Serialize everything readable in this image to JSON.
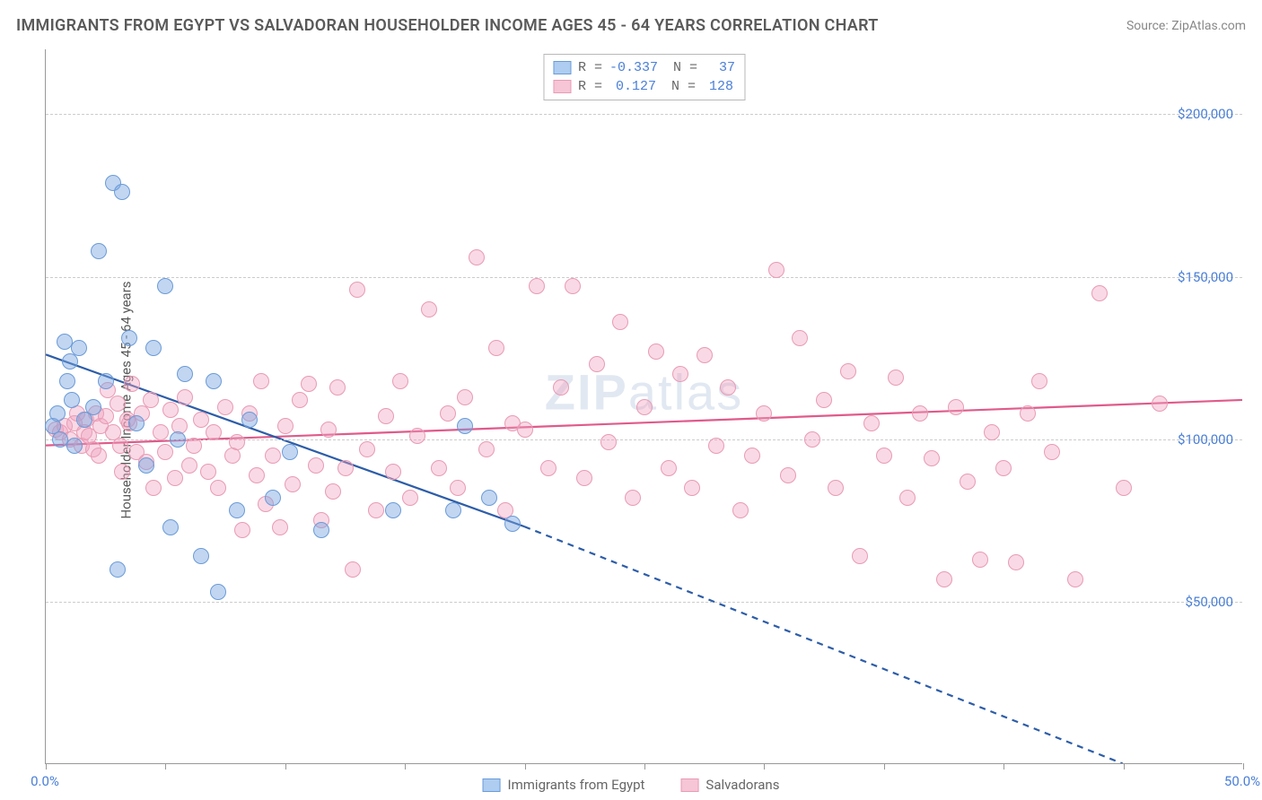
{
  "title": "IMMIGRANTS FROM EGYPT VS SALVADORAN HOUSEHOLDER INCOME AGES 45 - 64 YEARS CORRELATION CHART",
  "source": "Source: ZipAtlas.com",
  "watermark_a": "ZIP",
  "watermark_b": "atlas",
  "y_axis_label": "Householder Income Ages 45 - 64 years",
  "chart": {
    "type": "scatter",
    "background_color": "#ffffff",
    "grid_color": "#cccccc",
    "axis_color": "#999999",
    "xlim": [
      0,
      50
    ],
    "ylim": [
      0,
      220000
    ],
    "y_ticks": [
      50000,
      100000,
      150000,
      200000
    ],
    "y_tick_labels": [
      "$50,000",
      "$100,000",
      "$150,000",
      "$200,000"
    ],
    "x_ticks": [
      0,
      5,
      10,
      15,
      20,
      25,
      30,
      35,
      40,
      45,
      50
    ],
    "x_tick_labels": {
      "0": "0.0%",
      "50": "50.0%"
    },
    "marker_radius": 9,
    "marker_stroke_width": 1.2,
    "trend_line_width": 2.2
  },
  "series_a": {
    "name": "Immigrants from Egypt",
    "fill_color": "rgba(120,165,225,0.45)",
    "stroke_color": "#6a9bd8",
    "line_color": "#2d5da8",
    "swatch_fill": "#aecdf0",
    "swatch_stroke": "#6a9bd8",
    "R": "-0.337",
    "N": "37",
    "trend": {
      "x1": 0,
      "y1": 126000,
      "x2": 20,
      "y2": 73000,
      "dash_x2": 45,
      "dash_y2": 0
    },
    "points": [
      [
        0.3,
        104000
      ],
      [
        0.5,
        108000
      ],
      [
        0.8,
        130000
      ],
      [
        0.6,
        100000
      ],
      [
        0.9,
        118000
      ],
      [
        1.0,
        124000
      ],
      [
        1.1,
        112000
      ],
      [
        1.2,
        98000
      ],
      [
        1.4,
        128000
      ],
      [
        1.6,
        106000
      ],
      [
        2.0,
        110000
      ],
      [
        2.2,
        158000
      ],
      [
        2.5,
        118000
      ],
      [
        2.8,
        179000
      ],
      [
        3.0,
        60000
      ],
      [
        3.2,
        176000
      ],
      [
        3.5,
        131000
      ],
      [
        3.8,
        105000
      ],
      [
        4.2,
        92000
      ],
      [
        4.5,
        128000
      ],
      [
        5.0,
        147000
      ],
      [
        5.2,
        73000
      ],
      [
        5.5,
        100000
      ],
      [
        5.8,
        120000
      ],
      [
        6.5,
        64000
      ],
      [
        7.0,
        118000
      ],
      [
        7.2,
        53000
      ],
      [
        8.0,
        78000
      ],
      [
        8.5,
        106000
      ],
      [
        9.5,
        82000
      ],
      [
        10.2,
        96000
      ],
      [
        11.5,
        72000
      ],
      [
        14.5,
        78000
      ],
      [
        17.0,
        78000
      ],
      [
        17.5,
        104000
      ],
      [
        18.5,
        82000
      ],
      [
        19.5,
        74000
      ]
    ]
  },
  "series_b": {
    "name": "Salvadorans",
    "fill_color": "rgba(240,160,190,0.40)",
    "stroke_color": "#e89bb5",
    "line_color": "#e05a8a",
    "swatch_fill": "#f6c5d6",
    "swatch_stroke": "#e89bb5",
    "R": "0.127",
    "N": "128",
    "trend": {
      "x1": 0,
      "y1": 98000,
      "x2": 50,
      "y2": 112000
    },
    "points": [
      [
        0.4,
        103000
      ],
      [
        0.6,
        102000
      ],
      [
        0.8,
        104000
      ],
      [
        1.0,
        100000
      ],
      [
        1.2,
        105000
      ],
      [
        1.3,
        108000
      ],
      [
        1.5,
        98000
      ],
      [
        1.6,
        102000
      ],
      [
        1.7,
        106000
      ],
      [
        1.8,
        101000
      ],
      [
        2.0,
        97000
      ],
      [
        2.1,
        108000
      ],
      [
        2.2,
        95000
      ],
      [
        2.3,
        104000
      ],
      [
        2.5,
        107000
      ],
      [
        2.6,
        115000
      ],
      [
        2.8,
        102000
      ],
      [
        3.0,
        111000
      ],
      [
        3.1,
        98000
      ],
      [
        3.2,
        90000
      ],
      [
        3.4,
        106000
      ],
      [
        3.5,
        105000
      ],
      [
        3.6,
        117000
      ],
      [
        3.8,
        96000
      ],
      [
        4.0,
        108000
      ],
      [
        4.2,
        93000
      ],
      [
        4.4,
        112000
      ],
      [
        4.5,
        85000
      ],
      [
        4.8,
        102000
      ],
      [
        5.0,
        96000
      ],
      [
        5.2,
        109000
      ],
      [
        5.4,
        88000
      ],
      [
        5.6,
        104000
      ],
      [
        5.8,
        113000
      ],
      [
        6.0,
        92000
      ],
      [
        6.2,
        98000
      ],
      [
        6.5,
        106000
      ],
      [
        6.8,
        90000
      ],
      [
        7.0,
        102000
      ],
      [
        7.2,
        85000
      ],
      [
        7.5,
        110000
      ],
      [
        7.8,
        95000
      ],
      [
        8.0,
        99000
      ],
      [
        8.2,
        72000
      ],
      [
        8.5,
        108000
      ],
      [
        8.8,
        89000
      ],
      [
        9.0,
        118000
      ],
      [
        9.2,
        80000
      ],
      [
        9.5,
        95000
      ],
      [
        9.8,
        73000
      ],
      [
        10.0,
        104000
      ],
      [
        10.3,
        86000
      ],
      [
        10.6,
        112000
      ],
      [
        11.0,
        117000
      ],
      [
        11.3,
        92000
      ],
      [
        11.5,
        75000
      ],
      [
        11.8,
        103000
      ],
      [
        12.0,
        84000
      ],
      [
        12.2,
        116000
      ],
      [
        12.5,
        91000
      ],
      [
        12.8,
        60000
      ],
      [
        13.0,
        146000
      ],
      [
        13.4,
        97000
      ],
      [
        13.8,
        78000
      ],
      [
        14.2,
        107000
      ],
      [
        14.5,
        90000
      ],
      [
        14.8,
        118000
      ],
      [
        15.2,
        82000
      ],
      [
        15.5,
        101000
      ],
      [
        16.0,
        140000
      ],
      [
        16.4,
        91000
      ],
      [
        16.8,
        108000
      ],
      [
        17.2,
        85000
      ],
      [
        17.5,
        113000
      ],
      [
        18.0,
        156000
      ],
      [
        18.4,
        97000
      ],
      [
        18.8,
        128000
      ],
      [
        19.2,
        78000
      ],
      [
        19.5,
        105000
      ],
      [
        20.0,
        103000
      ],
      [
        20.5,
        147000
      ],
      [
        21.0,
        91000
      ],
      [
        21.5,
        116000
      ],
      [
        22.0,
        147000
      ],
      [
        22.5,
        88000
      ],
      [
        23.0,
        123000
      ],
      [
        23.5,
        99000
      ],
      [
        24.0,
        136000
      ],
      [
        24.5,
        82000
      ],
      [
        25.0,
        110000
      ],
      [
        25.5,
        127000
      ],
      [
        26.0,
        91000
      ],
      [
        26.5,
        120000
      ],
      [
        27.0,
        85000
      ],
      [
        27.5,
        126000
      ],
      [
        28.0,
        98000
      ],
      [
        28.5,
        116000
      ],
      [
        29.0,
        78000
      ],
      [
        29.5,
        95000
      ],
      [
        30.0,
        108000
      ],
      [
        30.5,
        152000
      ],
      [
        31.0,
        89000
      ],
      [
        31.5,
        131000
      ],
      [
        32.0,
        100000
      ],
      [
        32.5,
        112000
      ],
      [
        33.0,
        85000
      ],
      [
        33.5,
        121000
      ],
      [
        34.0,
        64000
      ],
      [
        34.5,
        105000
      ],
      [
        35.0,
        95000
      ],
      [
        35.5,
        119000
      ],
      [
        36.0,
        82000
      ],
      [
        36.5,
        108000
      ],
      [
        37.0,
        94000
      ],
      [
        37.5,
        57000
      ],
      [
        38.0,
        110000
      ],
      [
        38.5,
        87000
      ],
      [
        39.0,
        63000
      ],
      [
        39.5,
        102000
      ],
      [
        40.0,
        91000
      ],
      [
        40.5,
        62000
      ],
      [
        41.0,
        108000
      ],
      [
        41.5,
        118000
      ],
      [
        42.0,
        96000
      ],
      [
        43.0,
        57000
      ],
      [
        44.0,
        145000
      ],
      [
        45.0,
        85000
      ],
      [
        46.5,
        111000
      ]
    ]
  }
}
